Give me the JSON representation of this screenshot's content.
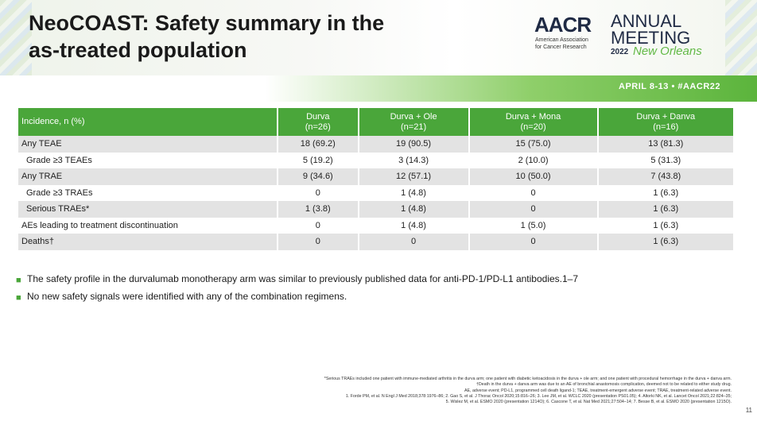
{
  "title": {
    "line1": "NeoCOAST: Safety summary in the",
    "line2": "as-treated population"
  },
  "logo": {
    "aacr": "AACR",
    "association_line1": "American Association",
    "association_line2": "for Cancer Research",
    "annual_line1": "ANNUAL",
    "annual_line2": "MEETING",
    "year": "2022",
    "city": "New Orleans"
  },
  "date_bar": "APRIL 8-13 • #AACR22",
  "table": {
    "header": {
      "label": "Incidence, n (%)",
      "columns": [
        {
          "name": "Durva",
          "n": "(n=26)"
        },
        {
          "name": "Durva + Ole",
          "n": "(n=21)"
        },
        {
          "name": "Durva + Mona",
          "n": "(n=20)"
        },
        {
          "name": "Durva + Danva",
          "n": "(n=16)"
        }
      ]
    },
    "rows": [
      {
        "label": "Any TEAE",
        "values": [
          "18 (69.2)",
          "19 (90.5)",
          "15 (75.0)",
          "13 (81.3)"
        ]
      },
      {
        "label": "Grade ≥3 TEAEs",
        "values": [
          "5 (19.2)",
          "3 (14.3)",
          "2 (10.0)",
          "5 (31.3)"
        ]
      },
      {
        "label": "Any TRAE",
        "values": [
          "9 (34.6)",
          "12 (57.1)",
          "10 (50.0)",
          "7 (43.8)"
        ]
      },
      {
        "label": "Grade ≥3 TRAEs",
        "values": [
          "0",
          "1 (4.8)",
          "0",
          "1 (6.3)"
        ]
      },
      {
        "label": "Serious TRAEs*",
        "values": [
          "1 (3.8)",
          "1 (4.8)",
          "0",
          "1 (6.3)"
        ]
      },
      {
        "label": "AEs leading to treatment discontinuation",
        "values": [
          "0",
          "1 (4.8)",
          "1 (5.0)",
          "1 (6.3)"
        ]
      },
      {
        "label": "Deaths†",
        "values": [
          "0",
          "0",
          "0",
          "1 (6.3)"
        ]
      }
    ]
  },
  "bullets": [
    "The safety profile in the durvalumab monotherapy arm was similar to previously published data for anti-PD-1/PD-L1 antibodies.1–7",
    "No new safety signals were identified with any of the combination regimens."
  ],
  "footnotes": [
    "*Serious TRAEs included one patient with immune-mediated arthritis in the durva arm; one patient with diabetic ketoacidosis in the durva + ole arm; and one patient with procedural hemorrhage in the durva + danva arm.",
    "†Death in the durva + danva arm was due to an AE of bronchial anastomosis complication, deemed not to be related to either study drug.",
    "AE, adverse event; PD-L1, programmed cell death ligand-1; TEAE, treatment-emergent adverse event; TRAE, treatment-related adverse event.",
    "1. Forde PM, et al. N Engl J Med 2018;378:1976–86; 2. Gao S, et al. J Thorac Oncol 2020;15:816–26; 3. Lee JM, et al. WCLC 2020 (presentation PS01.05); 4. Altorki NK, et al. Lancet Oncol 2021;22:824–35;",
    "5. Wislez M, et al. ESMO 2020 (presentation 1214O); 6. Cascone T, et al. Nat Med 2021;27:504–14; 7. Besse B, et al. ESMO 2020 (presentation 1215O)."
  ],
  "page_number": "11"
}
